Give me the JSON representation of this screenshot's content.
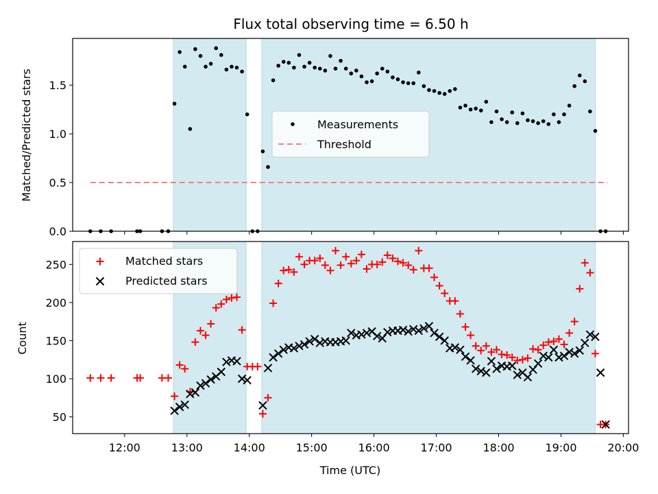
{
  "chart_data": [
    {
      "type": "scatter",
      "title": "Flux total observing time = 6.50 h",
      "ylabel": "Matched/Predicted stars",
      "ylim": [
        0,
        1.98
      ],
      "yticks": [
        "0.0",
        "0.5",
        "1.0",
        "1.5"
      ],
      "xlim": [
        "11:10",
        "20:05"
      ],
      "shaded_spans": [
        [
          "12:47",
          "13:57"
        ],
        [
          "14:12",
          "19:33"
        ]
      ],
      "shade_color": "#d3eaf1",
      "threshold": {
        "name": "Threshold",
        "value": 0.5,
        "x_range": [
          "11:27",
          "19:45"
        ],
        "color": "#f08080",
        "style": "dashed"
      },
      "legend": {
        "position": "center",
        "entries": [
          "Measurements",
          "Threshold"
        ]
      },
      "series": [
        {
          "name": "Measurements",
          "color": "#000000",
          "marker": "dot",
          "x": [
            "11:27",
            "11:37",
            "11:47",
            "12:12",
            "12:15",
            "12:36",
            "12:42",
            "12:48",
            "12:53",
            "12:58",
            "13:03",
            "13:08",
            "13:13",
            "13:18",
            "13:23",
            "13:28",
            "13:33",
            "13:38",
            "13:43",
            "13:48",
            "13:53",
            "13:58",
            "14:03",
            "14:08",
            "14:13",
            "14:18",
            "14:23",
            "14:28",
            "14:33",
            "14:38",
            "14:43",
            "14:48",
            "14:53",
            "14:58",
            "15:03",
            "15:08",
            "15:13",
            "15:18",
            "15:23",
            "15:28",
            "15:33",
            "15:38",
            "15:43",
            "15:48",
            "15:53",
            "15:58",
            "16:03",
            "16:08",
            "16:13",
            "16:18",
            "16:23",
            "16:28",
            "16:33",
            "16:38",
            "16:43",
            "16:48",
            "16:53",
            "16:58",
            "17:03",
            "17:08",
            "17:13",
            "17:18",
            "17:23",
            "17:28",
            "17:33",
            "17:38",
            "17:43",
            "17:48",
            "17:53",
            "17:58",
            "18:03",
            "18:08",
            "18:13",
            "18:18",
            "18:23",
            "18:28",
            "18:33",
            "18:38",
            "18:43",
            "18:48",
            "18:53",
            "18:58",
            "19:03",
            "19:08",
            "19:13",
            "19:18",
            "19:23",
            "19:28",
            "19:33",
            "19:38",
            "19:43"
          ],
          "y": [
            0,
            0,
            0,
            0,
            0,
            0,
            0,
            1.31,
            1.84,
            1.69,
            1.05,
            1.87,
            1.8,
            1.69,
            1.72,
            1.88,
            1.81,
            1.66,
            1.69,
            1.68,
            1.64,
            1.2,
            0,
            0,
            0.82,
            0.66,
            1.55,
            1.7,
            1.74,
            1.73,
            1.68,
            1.81,
            1.69,
            1.73,
            1.68,
            1.67,
            1.65,
            1.8,
            1.67,
            1.75,
            1.67,
            1.62,
            1.65,
            1.59,
            1.53,
            1.54,
            1.62,
            1.67,
            1.64,
            1.58,
            1.56,
            1.53,
            1.52,
            1.52,
            1.63,
            1.49,
            1.45,
            1.44,
            1.42,
            1.41,
            1.44,
            1.46,
            1.27,
            1.29,
            1.25,
            1.26,
            1.24,
            1.33,
            1.12,
            1.23,
            1.15,
            1.12,
            1.22,
            1.11,
            1.21,
            1.14,
            1.13,
            1.11,
            1.13,
            1.1,
            1.2,
            1.12,
            1.2,
            1.29,
            1.49,
            1.6,
            1.54,
            1.23,
            1.03,
            0,
            0
          ]
        }
      ]
    },
    {
      "type": "scatter",
      "xlabel": "Time (UTC)",
      "ylabel": "Count",
      "ylim": [
        28,
        280
      ],
      "yticks": [
        "50",
        "100",
        "150",
        "200",
        "250"
      ],
      "xticks": [
        "12:00",
        "13:00",
        "14:00",
        "15:00",
        "16:00",
        "17:00",
        "18:00",
        "19:00",
        "20:00"
      ],
      "legend": {
        "position": "upper left",
        "entries": [
          "Matched stars",
          "Predicted stars"
        ]
      },
      "series": [
        {
          "name": "Matched stars",
          "color": "#ff0000",
          "marker": "plus",
          "x": [
            "11:27",
            "11:37",
            "11:47",
            "12:12",
            "12:15",
            "12:36",
            "12:42",
            "12:48",
            "12:53",
            "12:58",
            "13:03",
            "13:08",
            "13:13",
            "13:18",
            "13:23",
            "13:28",
            "13:33",
            "13:38",
            "13:43",
            "13:48",
            "13:53",
            "13:58",
            "14:03",
            "14:08",
            "14:13",
            "14:18",
            "14:23",
            "14:28",
            "14:33",
            "14:38",
            "14:43",
            "14:48",
            "14:53",
            "14:58",
            "15:03",
            "15:08",
            "15:13",
            "15:18",
            "15:23",
            "15:28",
            "15:33",
            "15:38",
            "15:43",
            "15:48",
            "15:53",
            "15:58",
            "16:03",
            "16:08",
            "16:13",
            "16:18",
            "16:23",
            "16:28",
            "16:33",
            "16:38",
            "16:43",
            "16:48",
            "16:53",
            "16:58",
            "17:03",
            "17:08",
            "17:13",
            "17:18",
            "17:23",
            "17:28",
            "17:33",
            "17:38",
            "17:43",
            "17:48",
            "17:53",
            "17:58",
            "18:03",
            "18:08",
            "18:13",
            "18:18",
            "18:23",
            "18:28",
            "18:33",
            "18:38",
            "18:43",
            "18:48",
            "18:53",
            "18:58",
            "19:03",
            "19:08",
            "19:13",
            "19:18",
            "19:23",
            "19:28",
            "19:33",
            "19:38",
            "19:43"
          ],
          "y": [
            101,
            101,
            101,
            101,
            101,
            101,
            101,
            77,
            118,
            113,
            83,
            148,
            163,
            157,
            172,
            193,
            198,
            204,
            206,
            207,
            164,
            116,
            116,
            116,
            54,
            75,
            199,
            225,
            242,
            243,
            240,
            260,
            250,
            255,
            255,
            258,
            249,
            242,
            268,
            249,
            260,
            251,
            255,
            263,
            244,
            250,
            250,
            253,
            262,
            258,
            254,
            252,
            249,
            243,
            268,
            245,
            245,
            233,
            222,
            212,
            202,
            202,
            185,
            168,
            157,
            143,
            137,
            143,
            135,
            138,
            132,
            131,
            128,
            124,
            125,
            127,
            139,
            138,
            144,
            148,
            149,
            152,
            145,
            160,
            175,
            218,
            252,
            239,
            133,
            40,
            40
          ]
        },
        {
          "name": "Predicted stars",
          "color": "#000000",
          "marker": "x",
          "x": [
            "12:48",
            "12:53",
            "12:58",
            "13:03",
            "13:08",
            "13:13",
            "13:18",
            "13:23",
            "13:28",
            "13:33",
            "13:38",
            "13:43",
            "13:48",
            "13:53",
            "13:58",
            "14:13",
            "14:18",
            "14:23",
            "14:28",
            "14:33",
            "14:38",
            "14:43",
            "14:48",
            "14:53",
            "14:58",
            "15:03",
            "15:08",
            "15:13",
            "15:18",
            "15:23",
            "15:28",
            "15:33",
            "15:38",
            "15:43",
            "15:48",
            "15:53",
            "15:58",
            "16:03",
            "16:08",
            "16:13",
            "16:18",
            "16:23",
            "16:28",
            "16:33",
            "16:38",
            "16:43",
            "16:48",
            "16:53",
            "16:58",
            "17:03",
            "17:08",
            "17:13",
            "17:18",
            "17:23",
            "17:28",
            "17:33",
            "17:38",
            "17:43",
            "17:48",
            "17:53",
            "17:58",
            "18:03",
            "18:08",
            "18:13",
            "18:18",
            "18:23",
            "18:28",
            "18:33",
            "18:38",
            "18:43",
            "18:48",
            "18:53",
            "18:58",
            "19:03",
            "19:08",
            "19:13",
            "19:18",
            "19:23",
            "19:28",
            "19:33",
            "19:38",
            "19:43"
          ],
          "y": [
            58,
            63,
            66,
            80,
            82,
            91,
            94,
            99,
            103,
            109,
            122,
            124,
            123,
            100,
            98,
            65,
            114,
            128,
            133,
            138,
            141,
            140,
            143,
            145,
            149,
            152,
            147,
            149,
            148,
            148,
            149,
            150,
            160,
            157,
            158,
            160,
            162,
            156,
            153,
            161,
            163,
            163,
            164,
            162,
            165,
            163,
            166,
            169,
            160,
            155,
            150,
            140,
            141,
            138,
            129,
            124,
            113,
            110,
            108,
            123,
            113,
            117,
            116,
            117,
            105,
            108,
            102,
            112,
            120,
            130,
            128,
            138,
            128,
            130,
            135,
            133,
            137,
            147,
            158,
            155,
            108,
            40
          ]
        }
      ]
    }
  ]
}
